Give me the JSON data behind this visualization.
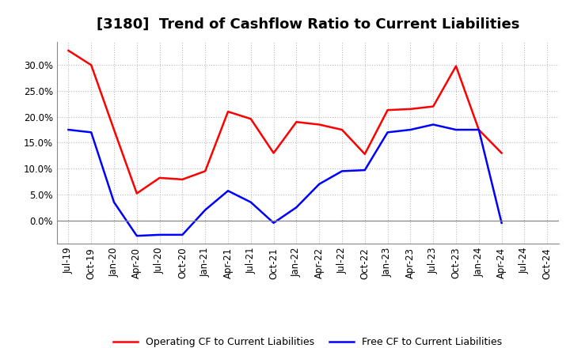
{
  "title": "[3180]  Trend of Cashflow Ratio to Current Liabilities",
  "x_labels": [
    "Jul-19",
    "Oct-19",
    "Jan-20",
    "Apr-20",
    "Jul-20",
    "Oct-20",
    "Jan-21",
    "Apr-21",
    "Jul-21",
    "Oct-21",
    "Jan-22",
    "Apr-22",
    "Jul-22",
    "Oct-22",
    "Jan-23",
    "Apr-23",
    "Jul-23",
    "Oct-23",
    "Jan-24",
    "Apr-24",
    "Jul-24",
    "Oct-24"
  ],
  "operating_cf": [
    0.328,
    0.3,
    0.175,
    0.052,
    0.082,
    0.079,
    0.095,
    0.21,
    0.196,
    0.13,
    0.19,
    0.185,
    0.175,
    0.128,
    0.213,
    0.215,
    0.22,
    0.298,
    0.175,
    0.13,
    null,
    null
  ],
  "free_cf": [
    0.175,
    0.17,
    0.035,
    -0.03,
    -0.028,
    -0.028,
    0.02,
    0.057,
    0.035,
    -0.005,
    0.025,
    0.07,
    0.095,
    0.097,
    0.17,
    0.175,
    0.185,
    0.175,
    0.175,
    -0.005,
    null,
    null
  ],
  "operating_color": "#FF0000",
  "free_color": "#0000FF",
  "ylim": [
    -0.045,
    0.345
  ],
  "yticks": [
    0.0,
    0.05,
    0.1,
    0.15,
    0.2,
    0.25,
    0.3
  ],
  "legend_labels": [
    "Operating CF to Current Liabilities",
    "Free CF to Current Liabilities"
  ],
  "background_color": "#FFFFFF",
  "grid_color": "#BBBBBB",
  "title_fontsize": 13,
  "tick_fontsize": 8.5,
  "legend_fontsize": 9
}
